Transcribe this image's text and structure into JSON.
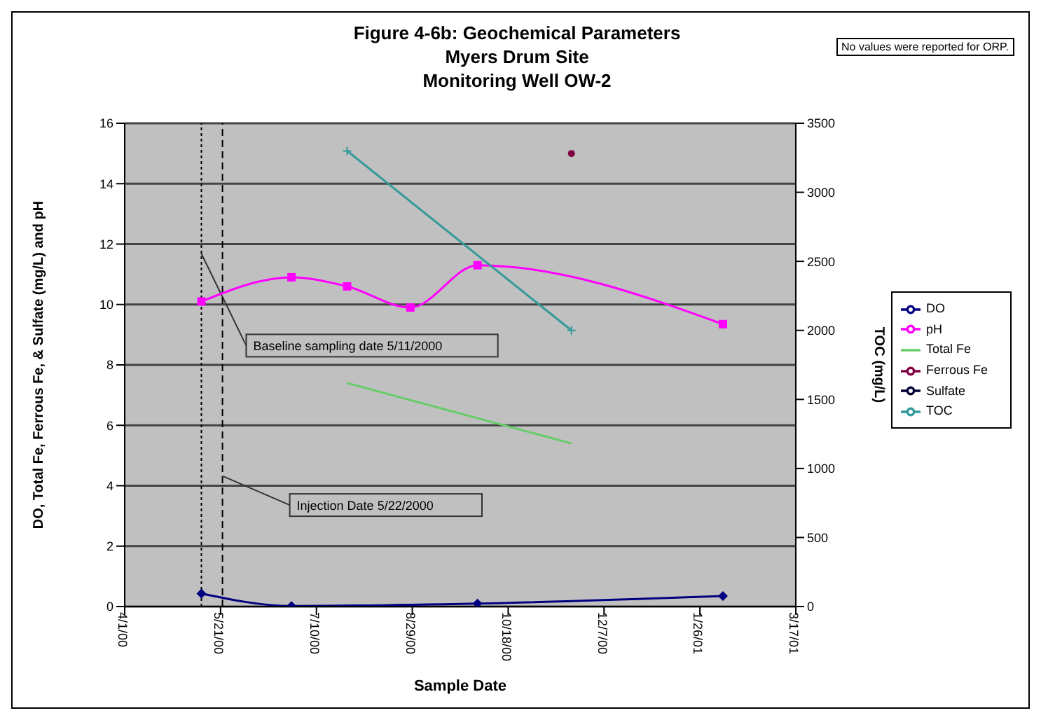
{
  "chart_data": {
    "type": "line",
    "title": "Figure 4-6b: Geochemical Parameters",
    "subtitle": "Myers Drum Site\nMonitoring Well OW-2",
    "xlabel": "Sample Date",
    "ylabel": "DO, Total Fe, Ferrous Fe, & Sulfate (mg/L) and pH",
    "y2label": "TOC (mg/L)",
    "annotations": [
      "No values were reported for ORP."
    ],
    "xlim": [
      "2000-04-01",
      "2001-03-17"
    ],
    "xticks": [
      {
        "value": "2000-04-01",
        "label": "4/1/00"
      },
      {
        "value": "2000-05-21",
        "label": "5/21/00"
      },
      {
        "value": "2000-07-10",
        "label": "7/10/00"
      },
      {
        "value": "2000-08-29",
        "label": "8/29/00"
      },
      {
        "value": "2000-10-18",
        "label": "10/18/00"
      },
      {
        "value": "2000-12-07",
        "label": "12/7/00"
      },
      {
        "value": "2001-01-26",
        "label": "1/26/01"
      },
      {
        "value": "2001-03-17",
        "label": "3/17/01"
      }
    ],
    "ylim": [
      0,
      16
    ],
    "yticks": [
      0,
      2,
      4,
      6,
      8,
      10,
      12,
      14,
      16
    ],
    "y2lim": [
      0,
      3500
    ],
    "y2ticks": [
      0,
      500,
      1000,
      1500,
      2000,
      2500,
      3000,
      3500
    ],
    "grid": "y",
    "legend": "right",
    "ref_lines": [
      {
        "axis": "x",
        "value": "2000-05-11",
        "label": "Baseline sampling date 5/11/2000",
        "color": "#000000",
        "line_style": "dotted"
      },
      {
        "axis": "x",
        "value": "2000-05-22",
        "label": "Injection Date 5/22/2000",
        "color": "#000000",
        "line_style": "dashed"
      }
    ],
    "series": [
      {
        "name": "DO",
        "color": "#000080",
        "marker": "diamond",
        "x": [
          "2000-05-11",
          "2000-06-27",
          "2000-10-02",
          "2001-02-07"
        ],
        "values": [
          0.43,
          0.02,
          0.1,
          0.35
        ]
      },
      {
        "name": "pH",
        "color": "#ff00ff",
        "marker": "square",
        "x": [
          "2000-05-11",
          "2000-06-27",
          "2000-07-26",
          "2000-08-28",
          "2000-10-02",
          "2001-02-07"
        ],
        "values": [
          10.1,
          10.9,
          10.6,
          9.9,
          11.3,
          9.35
        ]
      },
      {
        "name": "Total Fe",
        "color": "#66cc66",
        "marker": "none",
        "x": [
          "2000-07-26",
          "2000-11-20"
        ],
        "values": [
          7.4,
          5.4
        ]
      },
      {
        "name": "Ferrous Fe",
        "color": "#800040",
        "marker": "circle",
        "x": [
          "2000-11-20"
        ],
        "values": [
          15
        ]
      },
      {
        "name": "Sulfate",
        "color": "#000033",
        "marker": "circle"
      },
      {
        "name": "TOC",
        "color": "#339999",
        "marker": "cross",
        "axis": "y2",
        "x": [
          "2000-07-26",
          "2000-11-20"
        ],
        "values": [
          3300,
          2000
        ]
      }
    ]
  }
}
